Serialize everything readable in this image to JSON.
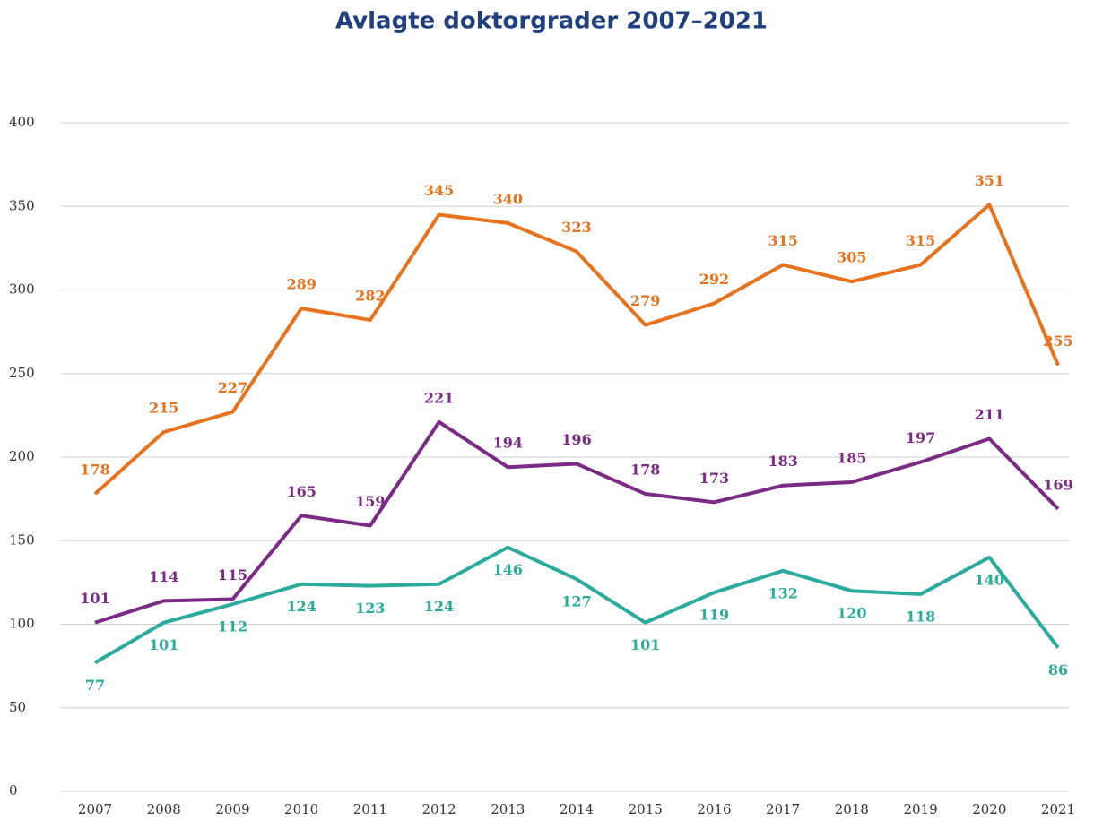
{
  "chart_data": {
    "type": "line",
    "title": "Avlagte doktorgrader 2007–2021",
    "categories": [
      "2007",
      "2008",
      "2009",
      "2010",
      "2011",
      "2012",
      "2013",
      "2014",
      "2015",
      "2016",
      "2017",
      "2018",
      "2019",
      "2020",
      "2021"
    ],
    "series": [
      {
        "color": "#e8731f",
        "values": [
          178,
          215,
          227,
          289,
          282,
          345,
          340,
          323,
          279,
          292,
          315,
          305,
          315,
          351,
          255
        ]
      },
      {
        "color": "#7b2a85",
        "values": [
          101,
          114,
          115,
          165,
          159,
          221,
          194,
          196,
          178,
          173,
          183,
          185,
          197,
          211,
          169
        ]
      },
      {
        "color": "#2bab9b",
        "values": [
          77,
          101,
          112,
          124,
          123,
          124,
          146,
          127,
          101,
          119,
          132,
          120,
          118,
          140,
          86
        ]
      }
    ],
    "ylim": [
      0,
      400
    ],
    "yticks": [
      0,
      50,
      100,
      150,
      200,
      250,
      300,
      350,
      400
    ],
    "grid": true
  }
}
